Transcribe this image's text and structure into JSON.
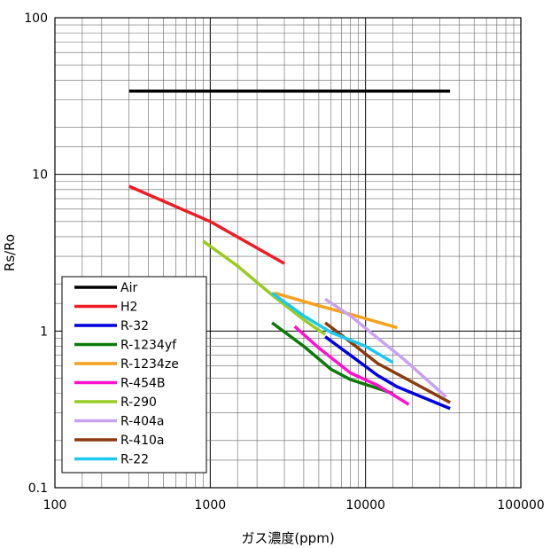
{
  "chart_data": {
    "type": "line",
    "title": "",
    "xlabel": "ガス濃度(ppm)",
    "ylabel": "Rs/Ro",
    "xscale": "log",
    "yscale": "log",
    "xlim": [
      100,
      100000
    ],
    "ylim": [
      0.1,
      100
    ],
    "xticks": [
      "100",
      "1000",
      "10000",
      "100000"
    ],
    "yticks": [
      "0.1",
      "1",
      "10",
      "100"
    ],
    "grid": true,
    "legend_position": "bottom-left",
    "series": [
      {
        "name": "Air",
        "color": "#000000",
        "points": [
          [
            300,
            34
          ],
          [
            35000,
            34
          ]
        ]
      },
      {
        "name": "H2",
        "color": "#ee1c24",
        "points": [
          [
            300,
            8.4
          ],
          [
            1000,
            5.0
          ],
          [
            3000,
            2.7
          ]
        ]
      },
      {
        "name": "R-32",
        "color": "#0000dd",
        "points": [
          [
            5500,
            0.92
          ],
          [
            8000,
            0.7
          ],
          [
            12000,
            0.52
          ],
          [
            16000,
            0.44
          ],
          [
            35000,
            0.32
          ]
        ]
      },
      {
        "name": "R-1234yf",
        "color": "#0b7a0b",
        "points": [
          [
            2500,
            1.13
          ],
          [
            4000,
            0.8
          ],
          [
            6000,
            0.57
          ],
          [
            8000,
            0.49
          ],
          [
            15000,
            0.4
          ]
        ]
      },
      {
        "name": "R-1234ze",
        "color": "#f7a01e",
        "points": [
          [
            2600,
            1.75
          ],
          [
            5000,
            1.45
          ],
          [
            8000,
            1.28
          ],
          [
            16000,
            1.05
          ]
        ]
      },
      {
        "name": "R-454B",
        "color": "#ff10d0",
        "points": [
          [
            3500,
            1.07
          ],
          [
            5000,
            0.78
          ],
          [
            8000,
            0.54
          ],
          [
            12000,
            0.45
          ],
          [
            19000,
            0.34
          ]
        ]
      },
      {
        "name": "R-290",
        "color": "#99cc22",
        "points": [
          [
            900,
            3.75
          ],
          [
            1500,
            2.6
          ],
          [
            2500,
            1.7
          ],
          [
            4000,
            1.18
          ],
          [
            5500,
            0.95
          ]
        ]
      },
      {
        "name": "R-404a",
        "color": "#c8a2f0",
        "points": [
          [
            5500,
            1.6
          ],
          [
            8000,
            1.25
          ],
          [
            12000,
            0.9
          ],
          [
            18000,
            0.65
          ],
          [
            33000,
            0.38
          ]
        ]
      },
      {
        "name": "R-410a",
        "color": "#8b3a10",
        "points": [
          [
            5500,
            1.13
          ],
          [
            8000,
            0.85
          ],
          [
            12000,
            0.62
          ],
          [
            18000,
            0.5
          ],
          [
            35000,
            0.35
          ]
        ]
      },
      {
        "name": "R-22",
        "color": "#1bc8f0",
        "points": [
          [
            2500,
            1.75
          ],
          [
            4000,
            1.25
          ],
          [
            6000,
            0.98
          ],
          [
            10000,
            0.8
          ],
          [
            15000,
            0.63
          ]
        ]
      }
    ]
  }
}
